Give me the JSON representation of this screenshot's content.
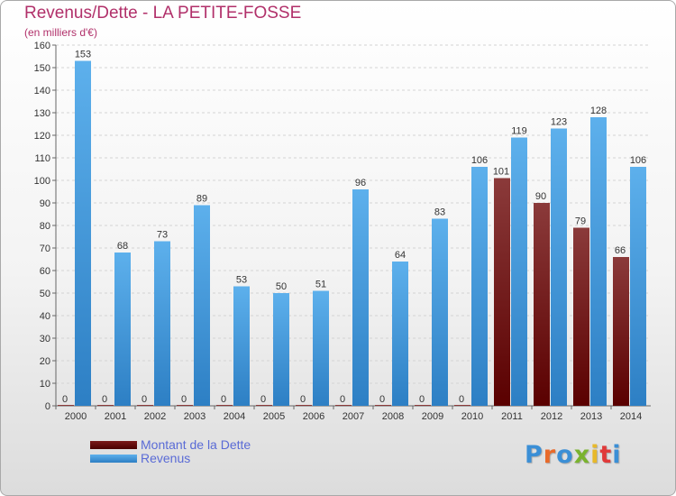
{
  "header": {
    "title": "Revenus/Dette - LA PETITE-FOSSE",
    "subtitle": "(en milliers d'€)"
  },
  "legend": {
    "items": [
      {
        "label": "Montant de la Dette",
        "color": "#5a0a0a"
      },
      {
        "label": "Revenus",
        "color": "#4a9fe0"
      }
    ]
  },
  "logo": {
    "text": "Proxiti",
    "colors": [
      "#3b8fd6",
      "#e86a2a",
      "#3b8fd6",
      "#7ab32e",
      "#e8b92a",
      "#e03a3a",
      "#3b8fd6"
    ]
  },
  "chart_data": {
    "type": "bar",
    "title": "Revenus/Dette - LA PETITE-FOSSE",
    "subtitle": "(en milliers d'€)",
    "categories": [
      "2000",
      "2001",
      "2002",
      "2003",
      "2004",
      "2005",
      "2006",
      "2007",
      "2008",
      "2009",
      "2010",
      "2011",
      "2012",
      "2013",
      "2014"
    ],
    "series": [
      {
        "name": "Montant de la Dette",
        "color_top": "#8b3a3a",
        "color_bottom": "#5a0000",
        "values": [
          0,
          0,
          0,
          0,
          0,
          0,
          0,
          0,
          0,
          0,
          0,
          101,
          90,
          79,
          66
        ]
      },
      {
        "name": "Revenus",
        "color_top": "#5db0ec",
        "color_bottom": "#2d7fc4",
        "values": [
          153,
          68,
          73,
          89,
          53,
          50,
          51,
          96,
          64,
          83,
          106,
          119,
          123,
          128,
          106
        ]
      }
    ],
    "ylim": [
      0,
      160
    ],
    "yticks": [
      0,
      10,
      20,
      30,
      40,
      50,
      60,
      70,
      80,
      90,
      100,
      110,
      120,
      130,
      140,
      150,
      160
    ],
    "grid": true,
    "legend_position": "bottom-left"
  }
}
